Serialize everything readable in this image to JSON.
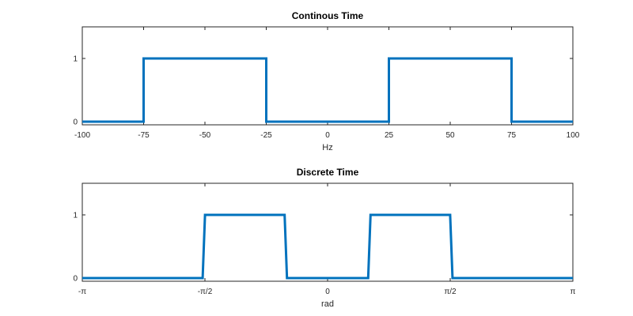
{
  "chart_data": [
    {
      "type": "line",
      "title": "Continous Time",
      "xlabel": "Hz",
      "ylabel": "",
      "xlim": [
        -100,
        100
      ],
      "ylim": [
        -0.05,
        1.5
      ],
      "xticks": [
        -100,
        -75,
        -50,
        -25,
        0,
        25,
        50,
        75,
        100
      ],
      "xtick_labels": [
        "-100",
        "-75",
        "-50",
        "-25",
        "0",
        "25",
        "50",
        "75",
        "100"
      ],
      "yticks": [
        0,
        1
      ],
      "ytick_labels": [
        "0",
        "1"
      ],
      "grid": false,
      "series": [
        {
          "color": "#0072bd",
          "x": [
            -100,
            -75,
            -75,
            -25,
            -25,
            25,
            25,
            75,
            75,
            100
          ],
          "y": [
            0,
            0,
            1,
            1,
            0,
            0,
            1,
            1,
            0,
            0
          ]
        }
      ]
    },
    {
      "type": "line",
      "title": "Discrete Time",
      "xlabel": "rad",
      "ylabel": "",
      "xlim": [
        -3.14159,
        3.14159
      ],
      "ylim": [
        -0.05,
        1.5
      ],
      "xticks": [
        -3.14159,
        -1.5708,
        0,
        1.5708,
        3.14159
      ],
      "xtick_labels": [
        "-π",
        "-π/2",
        "0",
        "π/2",
        "π"
      ],
      "yticks": [
        0,
        1
      ],
      "ytick_labels": [
        "0",
        "1"
      ],
      "grid": false,
      "series": [
        {
          "color": "#0072bd",
          "x": [
            -3.14159,
            -1.6,
            -1.57,
            -0.55,
            -0.52,
            0.52,
            0.55,
            1.57,
            1.6,
            3.14159
          ],
          "y": [
            0,
            0,
            1,
            1,
            0,
            0,
            1,
            1,
            0,
            0
          ]
        }
      ]
    }
  ]
}
